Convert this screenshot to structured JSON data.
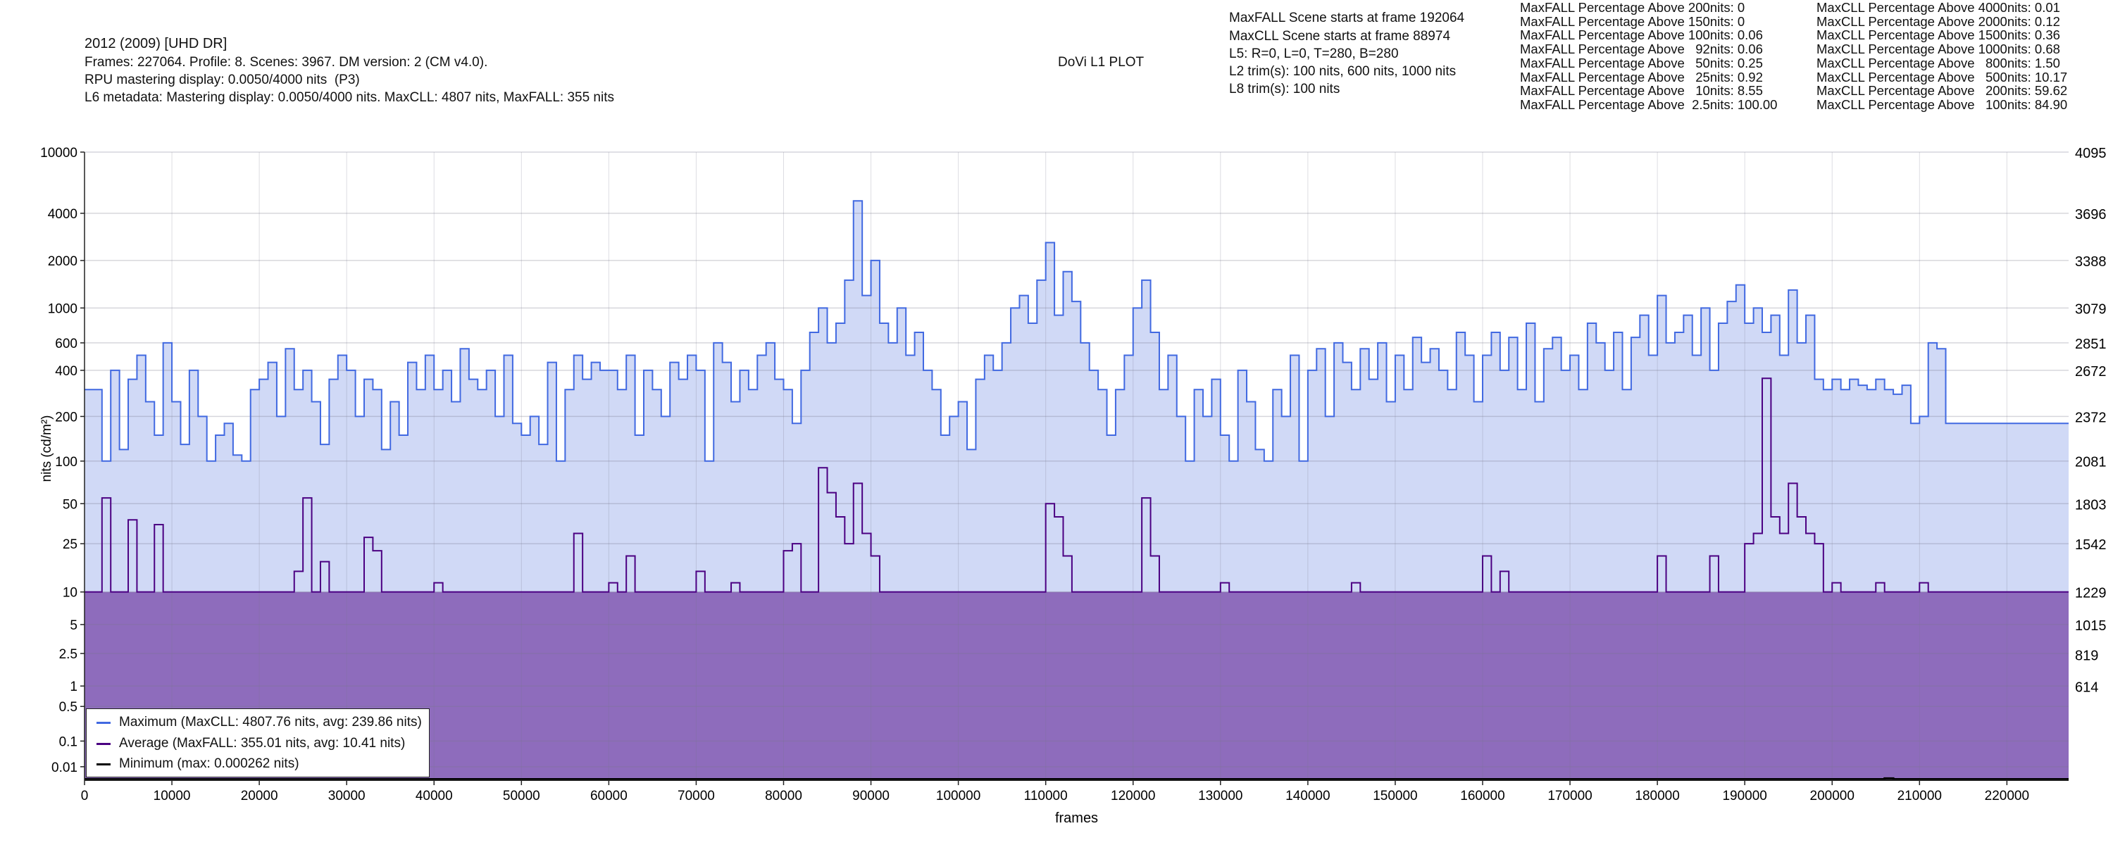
{
  "header": {
    "title": "2012 (2009) [UHD DR]",
    "line2": "Frames: 227064. Profile: 8. Scenes: 3967. DM version: 2 (CM v4.0).",
    "line3": "RPU mastering display: 0.0050/4000 nits  (P3)",
    "line4": "L6 metadata: Mastering display: 0.0050/4000 nits. MaxCLL: 4807 nits, MaxFALL: 355 nits",
    "plot_title": "DoVi L1 PLOT"
  },
  "info": [
    "MaxFALL Scene starts at frame 192064",
    "MaxCLL Scene starts at frame 88974",
    "L5: R=0, L=0, T=280, B=280",
    "L2 trim(s): 100 nits, 600 nits, 1000 nits",
    "L8 trim(s): 100 nits"
  ],
  "maxfall_pct": [
    "MaxFALL Percentage Above 200nits: 0",
    "MaxFALL Percentage Above 150nits: 0",
    "MaxFALL Percentage Above 100nits: 0.06",
    "MaxFALL Percentage Above   92nits: 0.06",
    "MaxFALL Percentage Above   50nits: 0.25",
    "MaxFALL Percentage Above   25nits: 0.92",
    "MaxFALL Percentage Above   10nits: 8.55",
    "MaxFALL Percentage Above  2.5nits: 100.00"
  ],
  "maxcll_pct": [
    "MaxCLL Percentage Above 4000nits: 0.01",
    "MaxCLL Percentage Above 2000nits: 0.12",
    "MaxCLL Percentage Above 1500nits: 0.36",
    "MaxCLL Percentage Above 1000nits: 0.68",
    "MaxCLL Percentage Above   800nits: 1.50",
    "MaxCLL Percentage Above   500nits: 10.17",
    "MaxCLL Percentage Above   200nits: 59.62",
    "MaxCLL Percentage Above   100nits: 84.90"
  ],
  "legend": {
    "maximum": "Maximum (MaxCLL: 4807.76 nits, avg: 239.86 nits)",
    "average": "Average (MaxFALL: 355.01 nits, avg: 10.41 nits)",
    "minimum": "Minimum (max: 0.000262 nits)"
  },
  "colors": {
    "maximum_line": "#4169e1",
    "maximum_fill": "#d0d9f6",
    "average_line": "#4b0082",
    "average_fill": "#8e6cbc",
    "minimum_line": "#000000",
    "grid": "#dddddd"
  },
  "chart_data": {
    "type": "line",
    "title": "DoVi L1 PLOT",
    "xlabel": "frames",
    "ylabel": "nits (cd/m²)",
    "y_scale": "PQ",
    "xlim": [
      0,
      227064
    ],
    "ylim_nits": [
      0,
      10000
    ],
    "x_ticks": [
      0,
      10000,
      20000,
      30000,
      40000,
      50000,
      60000,
      70000,
      80000,
      90000,
      100000,
      110000,
      120000,
      130000,
      140000,
      150000,
      160000,
      170000,
      180000,
      190000,
      200000,
      210000,
      220000
    ],
    "y_ticks": [
      10000,
      4000,
      2000,
      1000,
      600,
      400,
      200,
      100,
      50,
      25,
      10,
      5,
      2.5,
      1,
      0.5,
      0.1,
      0.01
    ],
    "y_tick_labels": [
      "10000",
      "4000",
      "2000",
      "1000",
      "600",
      "400",
      "200",
      "100",
      "50",
      "25",
      "10",
      "5",
      "2.5",
      "1",
      "0.5",
      "0.1",
      "0.01"
    ],
    "y2_ticks": [
      4095,
      3696,
      3388,
      3079,
      2851,
      2672,
      2372,
      2081,
      1803,
      1542,
      1229,
      1015,
      819,
      614
    ],
    "grid": true,
    "legend_placement": "bottom-left",
    "x_step": 1000,
    "series": [
      {
        "name": "Maximum (MaxCLL: 4807.76 nits, avg: 239.86 nits)",
        "values": [
          300,
          300,
          100,
          400,
          120,
          350,
          500,
          250,
          150,
          600,
          250,
          130,
          400,
          200,
          100,
          150,
          180,
          110,
          100,
          300,
          350,
          450,
          200,
          550,
          300,
          400,
          250,
          130,
          350,
          500,
          400,
          200,
          350,
          300,
          120,
          250,
          150,
          450,
          300,
          500,
          300,
          400,
          250,
          550,
          350,
          300,
          400,
          200,
          500,
          180,
          150,
          200,
          130,
          450,
          100,
          300,
          500,
          350,
          450,
          400,
          400,
          300,
          500,
          150,
          400,
          300,
          200,
          450,
          350,
          500,
          400,
          100,
          600,
          450,
          250,
          400,
          300,
          500,
          600,
          350,
          300,
          180,
          400,
          700,
          1000,
          600,
          800,
          1500,
          4807,
          1200,
          2000,
          800,
          600,
          1000,
          500,
          700,
          400,
          300,
          150,
          200,
          250,
          120,
          350,
          500,
          400,
          600,
          1000,
          1200,
          800,
          1500,
          2600,
          900,
          1700,
          1100,
          600,
          400,
          300,
          150,
          300,
          500,
          1000,
          1500,
          700,
          300,
          500,
          200,
          100,
          300,
          200,
          350,
          150,
          100,
          400,
          250,
          120,
          100,
          300,
          200,
          500,
          100,
          400,
          550,
          200,
          600,
          450,
          300,
          550,
          350,
          600,
          250,
          500,
          300,
          650,
          450,
          550,
          400,
          300,
          700,
          500,
          250,
          500,
          700,
          400,
          650,
          300,
          800,
          250,
          550,
          650,
          400,
          500,
          300,
          800,
          600,
          400,
          700,
          300,
          650,
          900,
          500,
          1200,
          600,
          700,
          900,
          500,
          1000,
          400,
          800,
          1100,
          1400,
          800,
          1000,
          700,
          900,
          500,
          1300,
          600,
          900,
          350,
          300,
          350,
          300,
          350,
          320,
          300,
          350,
          300,
          280,
          320,
          180,
          200,
          600,
          550,
          180,
          180,
          180,
          180,
          180,
          180,
          180,
          180,
          180,
          180,
          180,
          180,
          180,
          180,
          180
        ]
      },
      {
        "name": "Average (MaxFALL: 355.01 nits, avg: 10.41 nits)",
        "values": [
          10,
          10,
          55,
          10,
          10,
          38,
          10,
          10,
          35,
          10,
          10,
          10,
          10,
          10,
          10,
          10,
          10,
          10,
          10,
          10,
          10,
          10,
          10,
          10,
          15,
          55,
          10,
          18,
          10,
          10,
          10,
          10,
          28,
          22,
          10,
          10,
          10,
          10,
          10,
          10,
          12,
          10,
          10,
          10,
          10,
          10,
          10,
          10,
          10,
          10,
          10,
          10,
          10,
          10,
          10,
          10,
          30,
          10,
          10,
          10,
          12,
          10,
          20,
          10,
          10,
          10,
          10,
          10,
          10,
          10,
          15,
          10,
          10,
          10,
          12,
          10,
          10,
          10,
          10,
          10,
          22,
          25,
          10,
          10,
          90,
          60,
          40,
          25,
          70,
          30,
          20,
          10,
          10,
          10,
          10,
          10,
          10,
          10,
          10,
          10,
          10,
          10,
          10,
          10,
          10,
          10,
          10,
          10,
          10,
          10,
          50,
          40,
          20,
          10,
          10,
          10,
          10,
          10,
          10,
          10,
          10,
          55,
          20,
          10,
          10,
          10,
          10,
          10,
          10,
          10,
          12,
          10,
          10,
          10,
          10,
          10,
          10,
          10,
          10,
          10,
          10,
          10,
          10,
          10,
          10,
          12,
          10,
          10,
          10,
          10,
          10,
          10,
          10,
          10,
          10,
          10,
          10,
          10,
          10,
          10,
          20,
          10,
          15,
          10,
          10,
          10,
          10,
          10,
          10,
          10,
          10,
          10,
          10,
          10,
          10,
          10,
          10,
          10,
          10,
          10,
          20,
          10,
          10,
          10,
          10,
          10,
          20,
          10,
          10,
          10,
          25,
          30,
          355,
          40,
          30,
          70,
          40,
          30,
          25,
          10,
          12,
          10,
          10,
          10,
          10,
          12,
          10,
          10,
          10,
          10,
          12,
          10,
          10,
          10,
          10,
          10,
          10,
          10,
          10,
          10,
          10,
          10,
          10,
          10,
          10,
          10,
          10,
          10
        ]
      },
      {
        "name": "Minimum (max: 0.000262 nits)",
        "values": [
          0.0001,
          0.0001,
          0.0001,
          0.0001,
          0.0001,
          0.0001,
          0.0001,
          0.0001,
          0.0001,
          0.0001,
          0.0001,
          0.0001,
          0.0001,
          0.0001,
          0.0001,
          0.0001,
          0.0001,
          0.0001,
          0.0001,
          0.0001,
          0.0001,
          0.0001,
          0.0001,
          0.0001,
          0.0001,
          0.0001,
          0.0001,
          0.0001,
          0.0001,
          0.0001,
          0.0001,
          0.0001,
          0.0001,
          0.0001,
          0.0001,
          0.0001,
          0.0001,
          0.0001,
          0.0001,
          0.0001,
          0.0001,
          0.0001,
          0.0001,
          0.0001,
          0.0001,
          0.0001,
          0.0001,
          0.0001,
          0.0001,
          0.0001,
          0.0001,
          0.0001,
          0.0001,
          0.0001,
          0.0001,
          0.0001,
          0.0001,
          0.0001,
          0.0001,
          0.0001,
          0.0001,
          0.0001,
          0.0001,
          0.0001,
          0.0001,
          0.0001,
          0.0001,
          0.0001,
          0.0001,
          0.0001,
          0.0001,
          0.0001,
          0.0001,
          0.0001,
          0.0001,
          0.0001,
          0.0001,
          0.0001,
          0.0001,
          0.0001,
          0.0001,
          0.0001,
          0.0001,
          0.0001,
          0.0001,
          0.0001,
          0.0001,
          0.0001,
          0.0001,
          0.0001,
          0.0001,
          0.0001,
          0.0001,
          0.0001,
          0.0001,
          0.0001,
          0.0001,
          0.0001,
          0.0001,
          0.0001,
          0.0001,
          0.0001,
          0.0001,
          0.0001,
          0.0001,
          0.0001,
          0.0001,
          0.0001,
          0.0001,
          0.0001,
          0.0001,
          0.0001,
          0.0001,
          0.0001,
          0.0001,
          0.0001,
          0.0001,
          0.0001,
          0.0001,
          0.0001,
          0.0001,
          0.0001,
          0.0001,
          0.0001,
          0.0001,
          0.0001,
          0.0001,
          0.0001,
          0.0001,
          0.0001,
          0.0001,
          0.0001,
          0.0001,
          0.0001,
          0.0001,
          0.0001,
          0.0001,
          0.0001,
          0.0001,
          0.0001,
          0.0001,
          0.0001,
          0.0001,
          0.0001,
          0.0001,
          0.0001,
          0.0001,
          0.0001,
          0.0001,
          0.0001,
          0.0001,
          0.0001,
          0.0001,
          0.0001,
          0.0001,
          0.0001,
          0.0001,
          0.0001,
          0.0001,
          0.0001,
          0.0001,
          0.0001,
          0.0001,
          0.0001,
          0.0001,
          0.0001,
          0.0001,
          0.0001,
          0.0001,
          0.0001,
          0.0001,
          0.0001,
          0.0001,
          0.0001,
          0.0001,
          0.0001,
          0.0001,
          0.0001,
          0.0001,
          0.0001,
          0.0001,
          0.0001,
          0.0001,
          0.0001,
          0.0001,
          0.0001,
          0.0001,
          0.0001,
          0.0001,
          0.0001,
          0.0001,
          0.0001,
          0.0001,
          0.0001,
          0.0001,
          0.0001,
          0.0001,
          0.0001,
          0.0001,
          0.0001,
          0.0001,
          0.0001,
          0.0001,
          0.0001,
          0.0001,
          0.0001,
          0.000262,
          0.0001,
          0.0001,
          0.0001,
          0.0001,
          0.0001,
          0.0001,
          0.0001,
          0.0001,
          0.0001,
          0.0001,
          0.0001,
          0.0001,
          0.0001,
          0.0001,
          0.0001,
          0.0001,
          0.0001,
          0.0001,
          0.0001,
          0.0001,
          0.0001
        ]
      }
    ]
  }
}
